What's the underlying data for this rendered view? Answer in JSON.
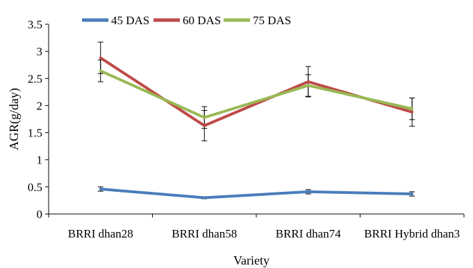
{
  "chart_data": {
    "type": "line",
    "title": "",
    "xlabel": "Variety",
    "ylabel": "AGR(g/day)",
    "categories": [
      "BRRI dhan28",
      "BRRI dhan58",
      "BRRI dhan74",
      "BRRI Hybrid dhan3"
    ],
    "ylim": [
      0,
      3.5
    ],
    "yticks": [
      "0",
      "0.5",
      "1",
      "1.5",
      "2",
      "2.5",
      "3",
      "3.5"
    ],
    "grid": false,
    "legend_position": "top-left",
    "series": [
      {
        "name": "45 DAS",
        "color": "#4a7ebb",
        "values": [
          0.46,
          0.3,
          0.41,
          0.37
        ],
        "errors": [
          0.04,
          0.02,
          0.04,
          0.04
        ]
      },
      {
        "name": "60 DAS",
        "color": "#be4b48",
        "values": [
          2.88,
          1.63,
          2.44,
          1.88
        ],
        "errors": [
          0.29,
          0.28,
          0.28,
          0.26
        ]
      },
      {
        "name": "75 DAS",
        "color": "#98b954",
        "values": [
          2.64,
          1.78,
          2.37,
          1.94
        ],
        "errors": [
          0.2,
          0.2,
          0.2,
          0.2
        ]
      }
    ]
  }
}
